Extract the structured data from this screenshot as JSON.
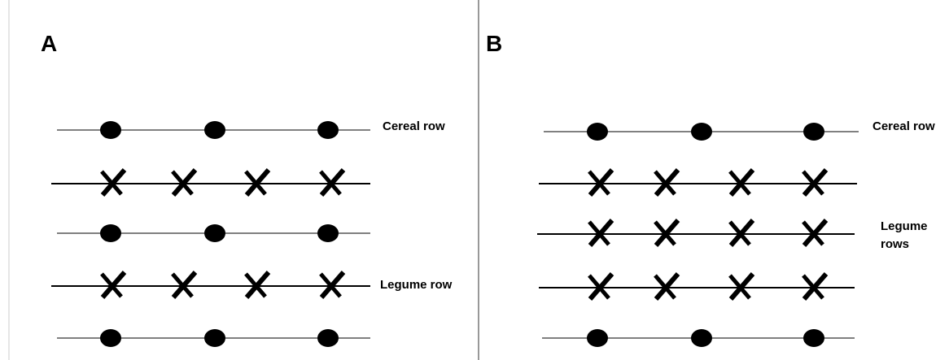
{
  "panels": [
    {
      "label": "A",
      "cereal_label": "Cereal row",
      "legume_label": "Legume row"
    },
    {
      "label": "B",
      "cereal_label": "Cereal row",
      "legume_label": "Legume rows"
    }
  ]
}
